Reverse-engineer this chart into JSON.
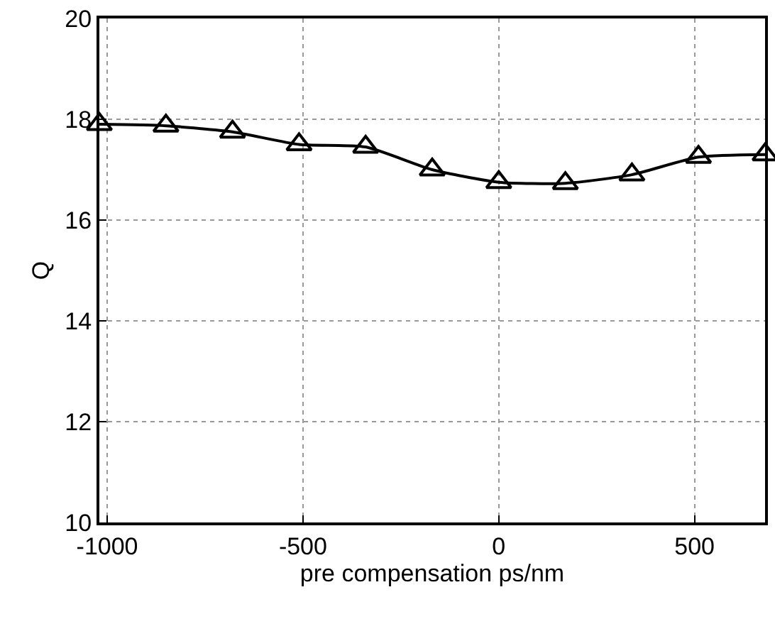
{
  "chart_data": {
    "type": "line",
    "xlabel": "pre compensation ps/nm",
    "ylabel": "Q",
    "x": [
      -1020,
      -850,
      -680,
      -510,
      -340,
      -170,
      0,
      170,
      340,
      510,
      680
    ],
    "series": [
      {
        "color": "#000000",
        "values": [
          17.9,
          17.87,
          17.75,
          17.5,
          17.45,
          17.0,
          16.75,
          16.73,
          16.9,
          17.25,
          17.3
        ]
      }
    ],
    "xlim": [
      -1020,
      680
    ],
    "xticks": [
      -1000,
      -500,
      0,
      500
    ],
    "ylim": [
      10,
      20
    ],
    "yticks": [
      10,
      12,
      14,
      16,
      18,
      20
    ],
    "grid": true,
    "marker": "triangle",
    "line_style": "solid",
    "legend": false
  }
}
